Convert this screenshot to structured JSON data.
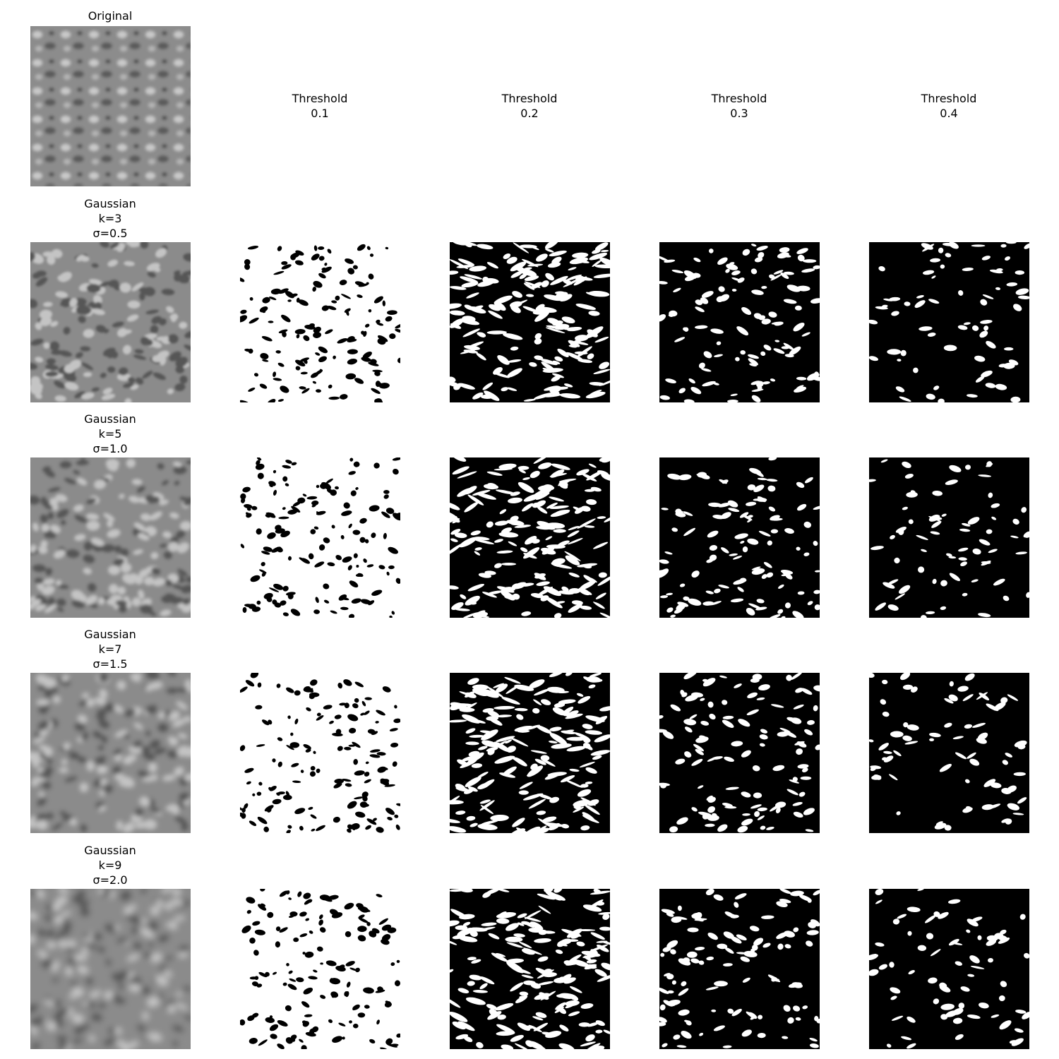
{
  "top_title": "Original",
  "column_titles": [
    "Threshold\n0.1",
    "Threshold\n0.2",
    "Threshold\n0.3",
    "Threshold\n0.4"
  ],
  "rows": [
    {
      "title": "Gaussian\nk=3\nσ=0.5"
    },
    {
      "title": "Gaussian\nk=5\nσ=1.0"
    },
    {
      "title": "Gaussian\nk=7\nσ=1.5"
    },
    {
      "title": "Gaussian\nk=9\nσ=2.0"
    }
  ],
  "thresholds": [
    0.1,
    0.2,
    0.3,
    0.4
  ]
}
